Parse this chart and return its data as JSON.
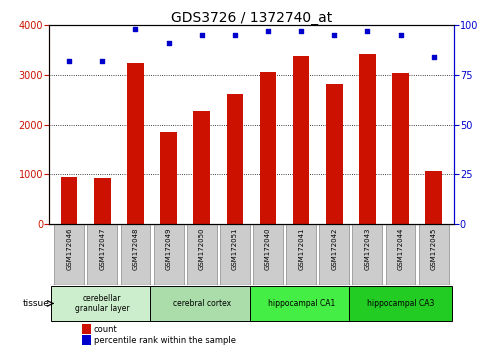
{
  "title": "GDS3726 / 1372740_at",
  "samples": [
    "GSM172046",
    "GSM172047",
    "GSM172048",
    "GSM172049",
    "GSM172050",
    "GSM172051",
    "GSM172040",
    "GSM172041",
    "GSM172042",
    "GSM172043",
    "GSM172044",
    "GSM172045"
  ],
  "counts": [
    950,
    930,
    3230,
    1850,
    2270,
    2620,
    3060,
    3380,
    2820,
    3420,
    3040,
    1060
  ],
  "percentiles": [
    82,
    82,
    98,
    91,
    95,
    95,
    97,
    97,
    95,
    97,
    95,
    84
  ],
  "ylim_left": [
    0,
    4000
  ],
  "ylim_right": [
    0,
    100
  ],
  "yticks_left": [
    0,
    1000,
    2000,
    3000,
    4000
  ],
  "yticks_right": [
    0,
    25,
    50,
    75,
    100
  ],
  "bar_color": "#cc1100",
  "dot_color": "#0000cc",
  "tissue_groups": [
    {
      "label": "cerebellar\ngranular layer",
      "start": 0,
      "end": 3,
      "color": "#cceecc"
    },
    {
      "label": "cerebral cortex",
      "start": 3,
      "end": 6,
      "color": "#aaddaa"
    },
    {
      "label": "hippocampal CA1",
      "start": 6,
      "end": 9,
      "color": "#44ee44"
    },
    {
      "label": "hippocampal CA3",
      "start": 9,
      "end": 12,
      "color": "#22cc22"
    }
  ],
  "tissue_label": "tissue",
  "legend_count_label": "count",
  "legend_pct_label": "percentile rank within the sample",
  "sample_box_color": "#cccccc",
  "title_fontsize": 10,
  "tick_fontsize": 7,
  "bar_width": 0.5
}
